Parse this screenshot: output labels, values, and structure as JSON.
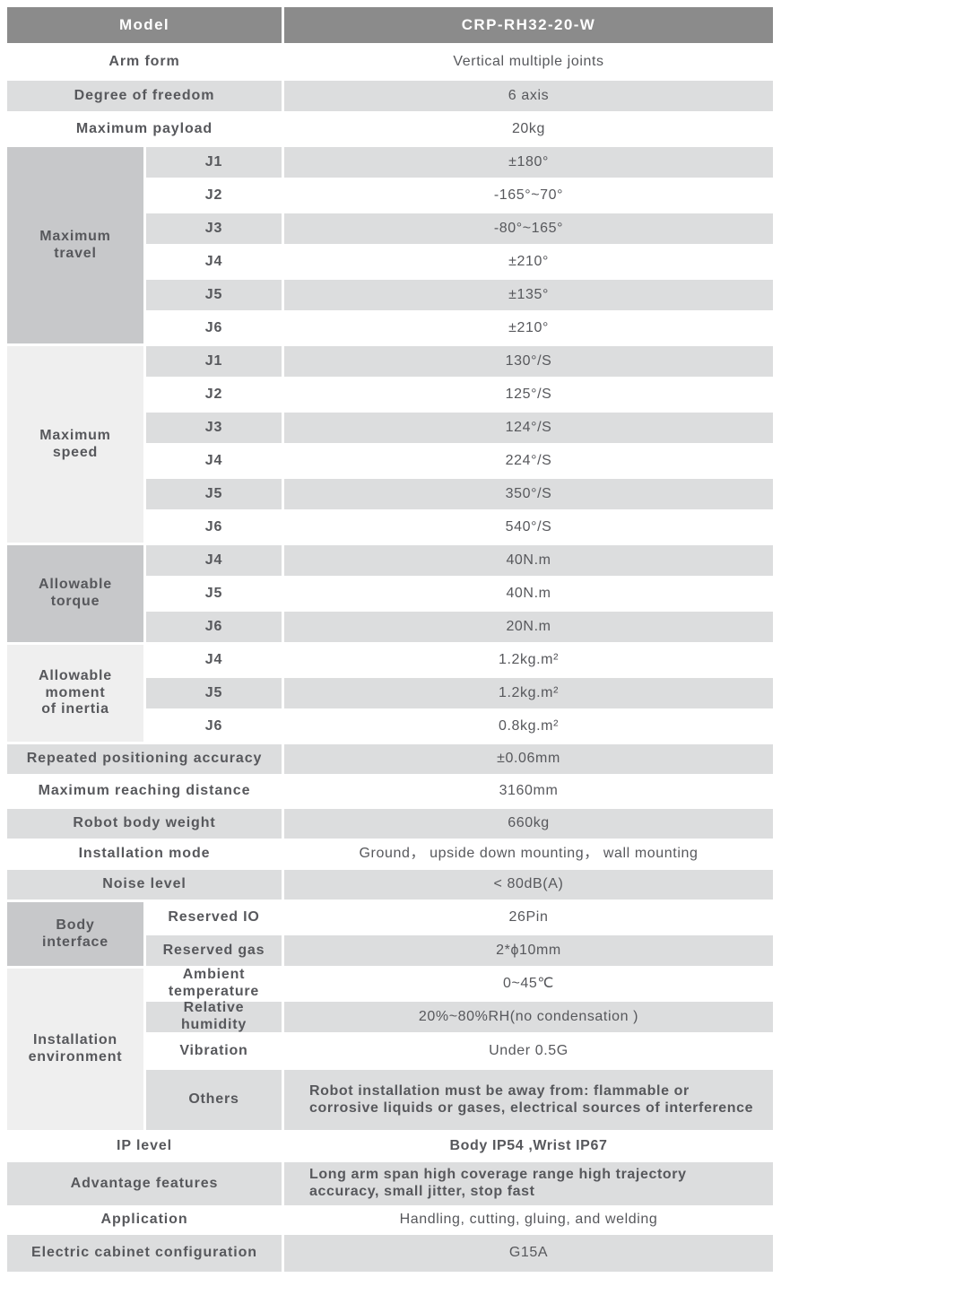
{
  "colors": {
    "header_bg": "#8b8b8b",
    "header_text": "#ffffff",
    "stripe_bg": "#dcddde",
    "group_dark_bg": "#c7c8ca",
    "group_light_bg": "#efefef",
    "body_text": "#57585c"
  },
  "header": {
    "label": "Model",
    "value": "CRP-RH32-20-W"
  },
  "rows": {
    "arm_form": {
      "label": "Arm form",
      "value": "Vertical multiple joints"
    },
    "dof": {
      "label": "Degree of freedom",
      "value": "6 axis"
    },
    "payload": {
      "label": "Maximum payload",
      "value": "20kg"
    },
    "accuracy": {
      "label": "Repeated positioning accuracy",
      "value": "±0.06mm"
    },
    "reach": {
      "label": "Maximum reaching distance",
      "value": "3160mm"
    },
    "weight": {
      "label": "Robot body weight",
      "value": "660kg"
    },
    "install_mode": {
      "label": "Installation mode",
      "value": "Ground， upside down mounting， wall mounting"
    },
    "noise": {
      "label": "Noise level",
      "value": "< 80dB(A)"
    },
    "ip": {
      "label": "IP level",
      "value": "Body IP54 ,Wrist IP67"
    },
    "advantage": {
      "label": "Advantage features",
      "value": "Long arm span high coverage range  high trajectory accuracy, small jitter, stop fast"
    },
    "application": {
      "label": "Application",
      "value": "Handling, cutting, gluing, and welding"
    },
    "cabinet": {
      "label": "Electric cabinet configuration",
      "value": "G15A"
    }
  },
  "groups": {
    "travel": {
      "label": "Maximum\ntravel",
      "rows": [
        {
          "sub": "J1",
          "value": "±180°"
        },
        {
          "sub": "J2",
          "value": "-165°~70°"
        },
        {
          "sub": "J3",
          "value": "-80°~165°"
        },
        {
          "sub": "J4",
          "value": "±210°"
        },
        {
          "sub": "J5",
          "value": "±135°"
        },
        {
          "sub": "J6",
          "value": "±210°"
        }
      ]
    },
    "speed": {
      "label": "Maximum\nspeed",
      "rows": [
        {
          "sub": "J1",
          "value": "130°/S"
        },
        {
          "sub": "J2",
          "value": "125°/S"
        },
        {
          "sub": "J3",
          "value": "124°/S"
        },
        {
          "sub": "J4",
          "value": "224°/S"
        },
        {
          "sub": "J5",
          "value": "350°/S"
        },
        {
          "sub": "J6",
          "value": "540°/S"
        }
      ]
    },
    "torque": {
      "label": "Allowable\ntorque",
      "rows": [
        {
          "sub": "J4",
          "value": "40N.m"
        },
        {
          "sub": "J5",
          "value": "40N.m"
        },
        {
          "sub": "J6",
          "value": "20N.m"
        }
      ]
    },
    "inertia": {
      "label": "Allowable\nmoment\nof inertia",
      "rows": [
        {
          "sub": "J4",
          "value": "1.2kg.m²"
        },
        {
          "sub": "J5",
          "value": "1.2kg.m²"
        },
        {
          "sub": "J6",
          "value": "0.8kg.m²"
        }
      ]
    },
    "body_interface": {
      "label": "Body\ninterface",
      "rows": [
        {
          "sub": "Reserved IO",
          "value": "26Pin"
        },
        {
          "sub": "Reserved gas",
          "value": "2*ϕ10mm"
        }
      ]
    },
    "environment": {
      "label": "Installation\nenvironment",
      "rows": [
        {
          "sub": "Ambient\ntemperature",
          "value": "0~45℃"
        },
        {
          "sub": "Relative\nhumidity",
          "value": "20%~80%RH(no condensation )"
        },
        {
          "sub": "Vibration",
          "value": "Under 0.5G"
        },
        {
          "sub": "Others",
          "value": "Robot installation must be away from: flammable or corrosive liquids or gases, electrical sources of interference"
        }
      ]
    }
  }
}
